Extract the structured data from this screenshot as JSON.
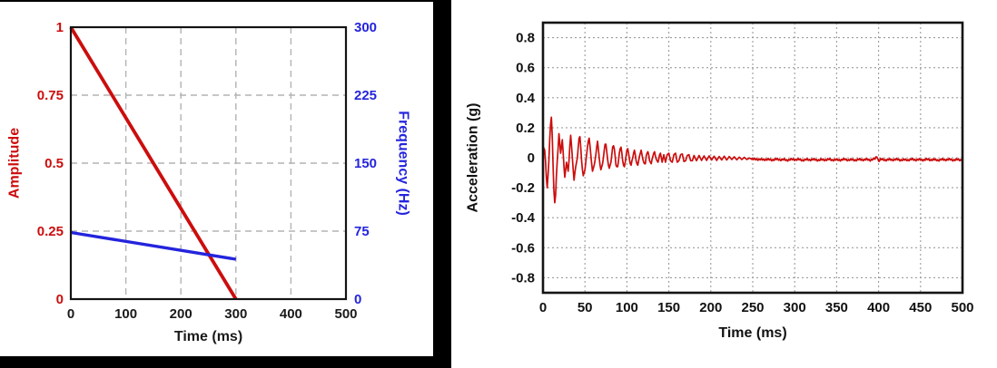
{
  "page": {
    "background": "#ffffff"
  },
  "chart_data": [
    {
      "id": "sweep-chart",
      "type": "line",
      "title": "",
      "xlabel": "Time (ms)",
      "ylabel_left": "Amplitude",
      "ylabel_right": "Frequency (Hz)",
      "ylabel_left_color": "#cc0d0d",
      "ylabel_right_color": "#2424dd",
      "xlabel_color": "#1a1a1a",
      "xlim": [
        0,
        500
      ],
      "ylim_left": [
        0,
        1
      ],
      "ylim_right": [
        0,
        300
      ],
      "x_ticks": {
        "values": [
          0,
          100,
          200,
          300,
          400,
          500
        ],
        "labels": [
          "0",
          "100",
          "200",
          "300",
          "400",
          "500"
        ]
      },
      "y_ticks_left": {
        "values": [
          1,
          0.75,
          0.5,
          0.25,
          0
        ],
        "labels": [
          "1",
          "0.75",
          "0.5",
          "0.25",
          "0"
        ]
      },
      "y_ticks_right": {
        "values": [
          300,
          225,
          150,
          75,
          0
        ],
        "labels": [
          "300",
          "225",
          "150",
          "75",
          "0"
        ]
      },
      "grid": "dashed",
      "grid_color": "#b3b3b3",
      "frame_color": "#141414",
      "series": [
        {
          "name": "amplitude",
          "axis": "left",
          "color": "#cc0d0d",
          "points": [
            [
              0,
              1
            ],
            [
              300,
              0
            ]
          ]
        },
        {
          "name": "frequency",
          "axis": "right",
          "color": "#2424dd",
          "points": [
            [
              0,
              73.5
            ],
            [
              300,
              44
            ]
          ]
        }
      ]
    },
    {
      "id": "acceleration-chart",
      "type": "line",
      "title": "",
      "xlabel": "Time (ms)",
      "ylabel": "Acceleration (g)",
      "ylabel_color": "#111111",
      "xlabel_color": "#111111",
      "xlim": [
        0,
        500
      ],
      "ylim": [
        -0.9,
        0.9
      ],
      "x_ticks": {
        "values": [
          0,
          50,
          100,
          150,
          200,
          250,
          300,
          350,
          400,
          450,
          500
        ],
        "labels": [
          "0",
          "50",
          "100",
          "150",
          "200",
          "250",
          "300",
          "350",
          "400",
          "450",
          "500"
        ]
      },
      "y_ticks": {
        "values": [
          0.8,
          0.6,
          0.4,
          0.2,
          0,
          -0.2,
          -0.4,
          -0.6,
          -0.8
        ],
        "labels": [
          "0.8",
          "0.6",
          "0.4",
          "0.2",
          "0",
          "-0.2",
          "-0.4",
          "-0.6",
          "-0.8"
        ]
      },
      "grid": "dotted",
      "grid_color": "#9c9c9c",
      "frame_color": "#141414",
      "series": [
        {
          "name": "acceleration",
          "color": "#cc0d0d",
          "keypoints": [
            [
              0,
              0
            ],
            [
              1,
              0.065
            ],
            [
              2,
              0.05
            ],
            [
              3,
              -0.02
            ],
            [
              4,
              -0.13
            ],
            [
              5,
              -0.2
            ],
            [
              6,
              -0.12
            ],
            [
              7,
              -0.02
            ],
            [
              8,
              0.12
            ],
            [
              9,
              0.22
            ],
            [
              10,
              0.27
            ],
            [
              11,
              0.15
            ],
            [
              12,
              -0.05
            ],
            [
              13,
              -0.22
            ],
            [
              14,
              -0.3
            ],
            [
              15,
              -0.25
            ],
            [
              16,
              -0.12
            ],
            [
              17,
              -0.02
            ],
            [
              18,
              0.06
            ],
            [
              19,
              0.16
            ],
            [
              20,
              0.1
            ],
            [
              21,
              0.03
            ],
            [
              22,
              0.07
            ],
            [
              23,
              0.12
            ],
            [
              24,
              0.04
            ],
            [
              25,
              -0.06
            ],
            [
              26,
              -0.13
            ],
            [
              27,
              -0.08
            ],
            [
              28,
              -0.03
            ],
            [
              29,
              -0.06
            ],
            [
              30,
              -0.09
            ],
            [
              31,
              -0.02
            ],
            [
              32,
              0.08
            ],
            [
              33,
              0.15
            ],
            [
              34,
              0.08
            ],
            [
              35,
              0
            ],
            [
              36,
              -0.08
            ],
            [
              37,
              -0.15
            ],
            [
              38,
              -0.1
            ],
            [
              39,
              -0.06
            ],
            [
              40,
              -0.03
            ],
            [
              41,
              0
            ],
            [
              42,
              0.07
            ],
            [
              43,
              0.13
            ],
            [
              44,
              0.14
            ],
            [
              45,
              0.07
            ],
            [
              46,
              -0.02
            ],
            [
              47,
              -0.08
            ],
            [
              48,
              -0.12
            ],
            [
              49,
              -0.1
            ],
            [
              50,
              -0.08
            ],
            [
              51,
              -0.03
            ],
            [
              52,
              0.02
            ],
            [
              53,
              0.07
            ],
            [
              54,
              0.11
            ],
            [
              55,
              0.13
            ],
            [
              56,
              0.08
            ],
            [
              57,
              0.02
            ],
            [
              58,
              -0.04
            ],
            [
              59,
              -0.09
            ],
            [
              60,
              -0.07
            ],
            [
              61,
              -0.05
            ],
            [
              62,
              -0.02
            ],
            [
              63,
              0.02
            ],
            [
              64,
              0.07
            ],
            [
              65,
              0.11
            ],
            [
              66,
              0.06
            ],
            [
              67,
              0
            ],
            [
              68,
              -0.05
            ],
            [
              69,
              -0.08
            ],
            [
              70,
              -0.06
            ],
            [
              71,
              -0.04
            ],
            [
              72,
              0
            ],
            [
              73,
              0.05
            ],
            [
              74,
              0.09
            ],
            [
              75,
              0.09
            ],
            [
              76,
              0.04
            ],
            [
              77,
              -0.01
            ],
            [
              78,
              -0.05
            ],
            [
              79,
              -0.07
            ],
            [
              80,
              -0.05
            ],
            [
              81,
              -0.03
            ],
            [
              82,
              0.02
            ],
            [
              83,
              0.07
            ],
            [
              84,
              0.08
            ],
            [
              85,
              0.06
            ],
            [
              86,
              0.01
            ],
            [
              87,
              -0.05
            ],
            [
              88,
              -0.06
            ],
            [
              89,
              -0.06
            ],
            [
              90,
              -0.02
            ],
            [
              91,
              0.03
            ],
            [
              92,
              0.06
            ],
            [
              93,
              0.07
            ],
            [
              94,
              0.03
            ],
            [
              95,
              -0.02
            ],
            [
              96,
              -0.05
            ],
            [
              97,
              -0.06
            ],
            [
              98,
              -0.03
            ],
            [
              99,
              0.01
            ],
            [
              100,
              0.05
            ],
            [
              101,
              0.06
            ],
            [
              102,
              0.03
            ],
            [
              103,
              -0.01
            ],
            [
              104,
              -0.04
            ],
            [
              105,
              -0.05
            ],
            [
              106,
              -0.02
            ],
            [
              107,
              0
            ],
            [
              108,
              0.03
            ],
            [
              109,
              0.05
            ],
            [
              110,
              0.02
            ],
            [
              111,
              -0.02
            ],
            [
              112,
              -0.04
            ],
            [
              113,
              -0.05
            ],
            [
              114,
              -0.02
            ],
            [
              115,
              0.01
            ],
            [
              116,
              0.03
            ],
            [
              117,
              0.05
            ],
            [
              118,
              0.02
            ],
            [
              119,
              -0.01
            ],
            [
              120,
              -0.03
            ],
            [
              121,
              -0.04
            ],
            [
              122,
              -0.04
            ],
            [
              123,
              0.01
            ],
            [
              124,
              0.03
            ],
            [
              125,
              0.04
            ],
            [
              126,
              0.02
            ],
            [
              127,
              -0.02
            ],
            [
              128,
              -0.03
            ],
            [
              129,
              -0.04
            ],
            [
              130,
              -0.01
            ],
            [
              131,
              0.01
            ],
            [
              132,
              0.03
            ],
            [
              133,
              0.04
            ],
            [
              134,
              0.01
            ],
            [
              135,
              -0.01
            ],
            [
              136,
              -0.02
            ],
            [
              137,
              -0.03
            ],
            [
              138,
              -0.01
            ],
            [
              139,
              0.02
            ],
            [
              140,
              0.03
            ],
            [
              142,
              -0.03
            ],
            [
              144,
              0.02
            ],
            [
              146,
              -0.03
            ],
            [
              148,
              0.02
            ],
            [
              150,
              0.03
            ],
            [
              152,
              -0.02
            ],
            [
              154,
              -0.03
            ],
            [
              156,
              0.02
            ],
            [
              158,
              0.03
            ],
            [
              160,
              -0.03
            ],
            [
              162,
              -0.02
            ],
            [
              164,
              0.02
            ],
            [
              166,
              0.025
            ],
            [
              168,
              -0.025
            ],
            [
              170,
              -0.02
            ],
            [
              172,
              0.015
            ],
            [
              174,
              0.02
            ],
            [
              176,
              -0.02
            ],
            [
              178,
              -0.02
            ],
            [
              180,
              0.015
            ],
            [
              183,
              -0.02
            ],
            [
              186,
              0.015
            ],
            [
              189,
              -0.018
            ],
            [
              192,
              0.012
            ],
            [
              195,
              -0.018
            ],
            [
              198,
              0.012
            ],
            [
              201,
              -0.015
            ],
            [
              204,
              0.01
            ],
            [
              207,
              -0.018
            ],
            [
              210,
              0.008
            ],
            [
              213,
              -0.015
            ],
            [
              216,
              0.01
            ],
            [
              219,
              -0.015
            ],
            [
              222,
              0.008
            ],
            [
              225,
              -0.012
            ],
            [
              228,
              0.006
            ],
            [
              231,
              -0.014
            ],
            [
              234,
              0.004
            ],
            [
              237,
              -0.012
            ],
            [
              240,
              0.002
            ],
            [
              243,
              -0.012
            ],
            [
              246,
              -0.002
            ],
            [
              250,
              -0.012
            ],
            [
              255,
              -0.008
            ],
            [
              260,
              -0.014
            ],
            [
              265,
              -0.01
            ],
            [
              270,
              -0.014
            ],
            [
              280,
              -0.011
            ],
            [
              290,
              -0.015
            ],
            [
              300,
              -0.011
            ],
            [
              310,
              -0.015
            ],
            [
              320,
              -0.012
            ],
            [
              330,
              -0.015
            ],
            [
              340,
              -0.012
            ],
            [
              350,
              -0.015
            ],
            [
              360,
              -0.012
            ],
            [
              370,
              -0.015
            ],
            [
              380,
              -0.012
            ],
            [
              390,
              -0.014
            ],
            [
              396,
              -0.008
            ],
            [
              398,
              0.012
            ],
            [
              400,
              -0.022
            ],
            [
              402,
              -0.012
            ],
            [
              410,
              -0.014
            ],
            [
              420,
              -0.012
            ],
            [
              430,
              -0.015
            ],
            [
              440,
              -0.012
            ],
            [
              450,
              -0.014
            ],
            [
              460,
              -0.012
            ],
            [
              470,
              -0.015
            ],
            [
              480,
              -0.012
            ],
            [
              490,
              -0.014
            ],
            [
              500,
              -0.013
            ]
          ],
          "tail_jitter": {
            "start": 248,
            "amp1": 0.005,
            "f1": 2.3,
            "amp2": 0.0035,
            "f2": 0.7,
            "phase2": 1.7
          }
        }
      ]
    }
  ]
}
